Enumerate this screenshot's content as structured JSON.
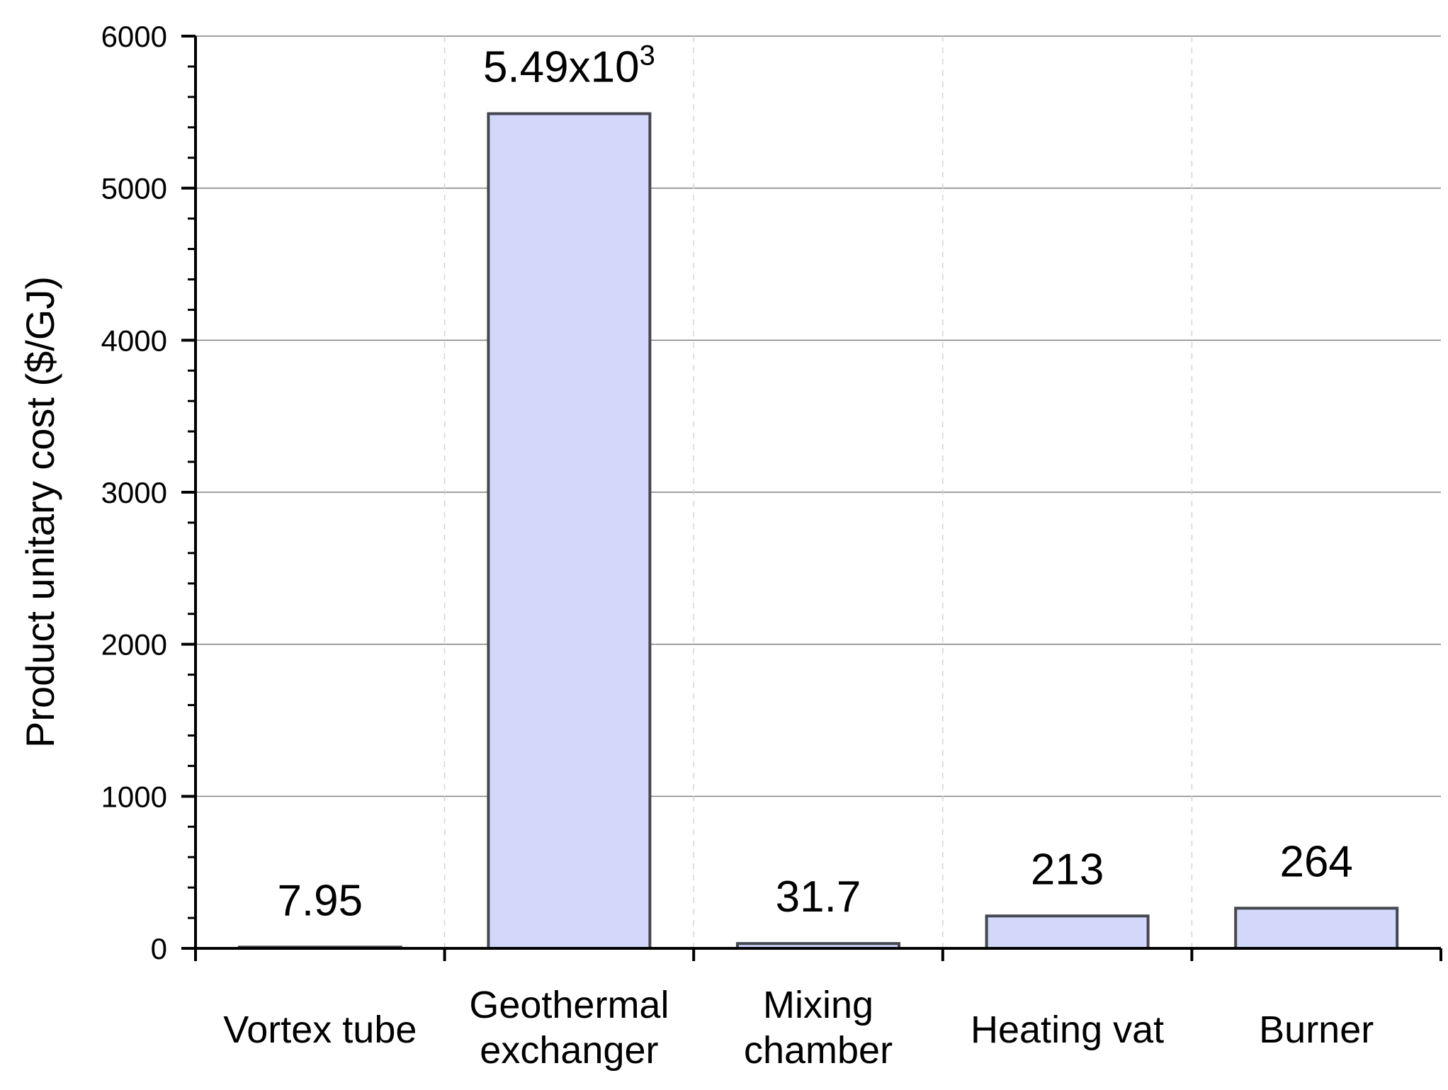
{
  "chart_data": {
    "type": "bar",
    "categories": [
      [
        "Vortex tube"
      ],
      [
        "Geothermal",
        "exchanger"
      ],
      [
        "Mixing",
        "chamber"
      ],
      [
        "Heating vat"
      ],
      [
        "Burner"
      ]
    ],
    "values": [
      7.95,
      5490,
      31.7,
      213,
      264
    ],
    "data_labels": [
      {
        "base": "7.95",
        "sup": ""
      },
      {
        "base": "5.49x10",
        "sup": "3"
      },
      {
        "base": "31.7",
        "sup": ""
      },
      {
        "base": "213",
        "sup": ""
      },
      {
        "base": "264",
        "sup": ""
      }
    ],
    "title": "",
    "xlabel": "",
    "ylabel": "Product unitary cost ($/GJ)",
    "ylim": [
      0,
      6000
    ],
    "yticks": [
      0,
      1000,
      2000,
      3000,
      4000,
      5000,
      6000
    ],
    "minor_yticks_per_major": 5,
    "grid": {
      "horizontal": true,
      "vertical_between_categories": true,
      "vertical_style": "dashed"
    },
    "colors": {
      "bar_fill": "#d3d8fb",
      "bar_edge": "#454750",
      "axis": "#000000",
      "grid": "#808080",
      "vgrid": "#d4d4d4"
    }
  }
}
